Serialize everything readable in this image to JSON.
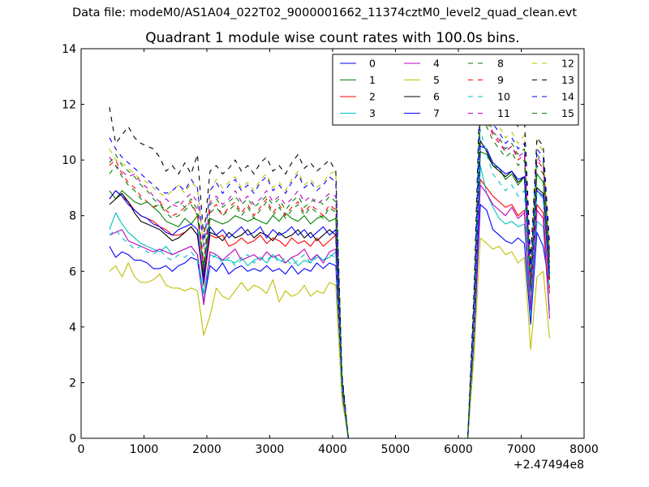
{
  "figure": {
    "suptitle": "Data file: modeM0/AS1A04_022T02_9000001662_11374cztM0_level2_quad_clean.evt"
  },
  "chart_data": {
    "type": "line",
    "title": "Quadrant 1 module wise count rates with 100.0s bins.",
    "xlabel": "",
    "ylabel": "",
    "x_offset_label": "+2.47494e8",
    "xlim": [
      0,
      8000
    ],
    "ylim": [
      0,
      14
    ],
    "xticks": [
      0,
      1000,
      2000,
      3000,
      4000,
      5000,
      6000,
      7000,
      8000
    ],
    "yticks": [
      0,
      2,
      4,
      6,
      8,
      10,
      12,
      14
    ],
    "grid": false,
    "legend_position": "top-right",
    "legend_columns": 4,
    "x": [
      450,
      550,
      650,
      750,
      850,
      950,
      1050,
      1150,
      1250,
      1350,
      1450,
      1550,
      1650,
      1750,
      1850,
      1950,
      2050,
      2150,
      2250,
      2350,
      2450,
      2550,
      2650,
      2750,
      2850,
      2950,
      3050,
      3150,
      3250,
      3350,
      3450,
      3550,
      3650,
      3750,
      3850,
      3950,
      4050,
      4150,
      4250,
      4350,
      4450,
      4550,
      4650,
      4750,
      4850,
      4950,
      5050,
      5150,
      5250,
      5350,
      5450,
      5550,
      5650,
      5750,
      5850,
      5950,
      6050,
      6150,
      6250,
      6350,
      6450,
      6550,
      6650,
      6750,
      6850,
      6950,
      7050,
      7150,
      7250,
      7350,
      7450
    ],
    "series": [
      {
        "name": "0",
        "color": "#0000ff",
        "dash": "solid",
        "values": [
          6.9,
          6.5,
          6.7,
          6.6,
          6.4,
          6.4,
          6.3,
          6.1,
          6.1,
          6.2,
          6.0,
          6.2,
          6.3,
          6.5,
          6.4,
          4.9,
          6.2,
          6.0,
          6.3,
          5.9,
          6.1,
          6.2,
          6.0,
          6.1,
          6.0,
          6.2,
          6.0,
          6.1,
          5.9,
          6.2,
          5.9,
          6.1,
          6.0,
          6.3,
          6.1,
          6.3,
          6.2,
          1.6,
          0,
          0,
          0,
          0,
          0,
          0,
          0,
          0,
          0,
          0,
          0,
          0,
          0,
          0,
          0,
          0,
          0,
          0,
          0,
          0,
          3.6,
          8.4,
          8.2,
          7.5,
          7.3,
          7.1,
          7.0,
          7.2,
          7.0,
          4.1,
          7.4,
          6.9,
          5.4
        ]
      },
      {
        "name": "1",
        "color": "#008000",
        "dash": "solid",
        "values": [
          8.9,
          8.6,
          8.9,
          8.7,
          8.5,
          8.4,
          8.5,
          8.3,
          8.1,
          7.8,
          7.7,
          7.6,
          7.9,
          7.7,
          8.0,
          6.0,
          7.9,
          7.8,
          7.7,
          7.8,
          8.0,
          7.9,
          7.8,
          7.9,
          7.8,
          7.7,
          8.0,
          7.8,
          8.1,
          7.9,
          7.8,
          8.0,
          7.7,
          7.9,
          8.0,
          7.8,
          7.9,
          1.9,
          0,
          0,
          0,
          0,
          0,
          0,
          0,
          0,
          0,
          0,
          0,
          0,
          0,
          0,
          0,
          0,
          0,
          0,
          0,
          0,
          4.4,
          10.3,
          10.2,
          9.8,
          9.7,
          9.3,
          9.5,
          9.1,
          9.4,
          5.4,
          9.5,
          9.2,
          6.1
        ]
      },
      {
        "name": "2",
        "color": "#ff0000",
        "dash": "solid",
        "values": [
          8.6,
          8.9,
          8.7,
          8.5,
          8.2,
          8.0,
          7.9,
          7.8,
          7.6,
          7.5,
          7.3,
          7.3,
          7.4,
          7.6,
          7.3,
          5.5,
          7.3,
          7.2,
          7.3,
          6.9,
          7.0,
          7.2,
          7.0,
          7.1,
          7.3,
          7.0,
          7.2,
          7.1,
          6.9,
          7.2,
          7.0,
          7.1,
          6.9,
          7.2,
          6.9,
          7.1,
          7.3,
          1.8,
          0,
          0,
          0,
          0,
          0,
          0,
          0,
          0,
          0,
          0,
          0,
          0,
          0,
          0,
          0,
          0,
          0,
          0,
          0,
          0,
          4.0,
          9.3,
          9.0,
          8.7,
          8.5,
          8.3,
          8.4,
          8.0,
          8.2,
          4.7,
          8.4,
          8.1,
          5.2
        ]
      },
      {
        "name": "3",
        "color": "#00bfbf",
        "dash": "solid",
        "values": [
          7.5,
          8.1,
          7.7,
          7.4,
          7.2,
          7.0,
          6.9,
          6.8,
          6.7,
          6.9,
          6.6,
          6.7,
          6.8,
          6.9,
          6.6,
          5.2,
          6.6,
          6.5,
          6.4,
          6.4,
          6.3,
          6.5,
          6.2,
          6.4,
          6.5,
          6.3,
          6.6,
          6.4,
          6.3,
          6.5,
          6.2,
          6.4,
          6.3,
          6.6,
          6.4,
          6.5,
          6.7,
          1.7,
          0,
          0,
          0,
          0,
          0,
          0,
          0,
          0,
          0,
          0,
          0,
          0,
          0,
          0,
          0,
          0,
          0,
          0,
          0,
          0,
          3.8,
          9.8,
          8.8,
          8.3,
          7.9,
          7.7,
          7.8,
          7.6,
          7.7,
          4.4,
          7.8,
          7.6,
          4.6
        ]
      },
      {
        "name": "4",
        "color": "#bf00bf",
        "dash": "solid",
        "values": [
          7.3,
          7.4,
          7.5,
          7.1,
          7.0,
          6.9,
          6.8,
          6.7,
          6.8,
          6.7,
          6.6,
          6.7,
          6.8,
          6.9,
          6.6,
          4.8,
          6.7,
          6.6,
          6.4,
          6.6,
          6.8,
          6.4,
          6.5,
          6.6,
          6.4,
          6.7,
          6.5,
          6.6,
          6.3,
          6.5,
          6.6,
          6.8,
          6.4,
          6.6,
          6.3,
          6.7,
          6.8,
          1.7,
          0,
          0,
          0,
          0,
          0,
          0,
          0,
          0,
          0,
          0,
          0,
          0,
          0,
          0,
          0,
          0,
          0,
          0,
          0,
          0,
          3.8,
          9.1,
          8.8,
          8.4,
          8.2,
          8.0,
          8.3,
          7.9,
          8.1,
          4.6,
          8.2,
          7.9,
          4.3
        ]
      },
      {
        "name": "5",
        "color": "#bfbf00",
        "dash": "solid",
        "values": [
          6.0,
          6.2,
          5.8,
          6.3,
          5.8,
          5.6,
          5.6,
          5.7,
          5.9,
          5.5,
          5.4,
          5.4,
          5.3,
          5.4,
          5.3,
          3.7,
          4.4,
          5.4,
          5.1,
          5.0,
          5.3,
          5.6,
          5.3,
          5.5,
          5.4,
          5.2,
          5.7,
          4.9,
          5.3,
          5.1,
          5.2,
          5.5,
          5.1,
          5.3,
          5.2,
          5.6,
          5.5,
          1.4,
          0,
          0,
          0,
          0,
          0,
          0,
          0,
          0,
          0,
          0,
          0,
          0,
          0,
          0,
          0,
          0,
          0,
          0,
          0,
          0,
          3.0,
          7.2,
          7.0,
          6.8,
          6.9,
          6.6,
          6.7,
          6.3,
          6.5,
          3.2,
          5.8,
          6.0,
          3.6
        ]
      },
      {
        "name": "6",
        "color": "#000000",
        "dash": "solid",
        "values": [
          8.4,
          8.6,
          8.8,
          8.5,
          8.1,
          7.8,
          7.7,
          7.6,
          7.5,
          7.3,
          7.1,
          7.2,
          7.4,
          7.6,
          7.3,
          5.8,
          7.4,
          7.3,
          7.1,
          7.4,
          7.2,
          7.3,
          7.5,
          7.2,
          7.4,
          7.3,
          7.1,
          7.4,
          7.2,
          7.3,
          7.5,
          7.2,
          7.4,
          7.1,
          7.3,
          7.5,
          7.3,
          1.8,
          0,
          0,
          0,
          0,
          0,
          0,
          0,
          0,
          0,
          0,
          0,
          0,
          0,
          0,
          0,
          0,
          0,
          0,
          0,
          0,
          4.2,
          10.7,
          10.3,
          9.8,
          9.6,
          9.4,
          9.6,
          9.2,
          9.4,
          5.3,
          9.0,
          8.8,
          5.7
        ]
      },
      {
        "name": "7",
        "color": "#0000ff",
        "dash": "solid",
        "values": [
          8.6,
          8.9,
          8.7,
          8.4,
          8.2,
          8.0,
          7.9,
          7.7,
          7.6,
          7.4,
          7.3,
          7.5,
          7.6,
          7.7,
          7.5,
          5.6,
          7.6,
          7.3,
          7.5,
          7.2,
          7.4,
          7.6,
          7.3,
          7.4,
          7.6,
          7.2,
          7.5,
          7.3,
          7.4,
          7.6,
          7.3,
          7.5,
          7.2,
          7.4,
          7.6,
          7.3,
          7.5,
          1.8,
          0,
          0,
          0,
          0,
          0,
          0,
          0,
          0,
          0,
          0,
          0,
          0,
          0,
          0,
          0,
          0,
          0,
          0,
          0,
          0,
          4.1,
          10.5,
          10.4,
          9.9,
          9.7,
          9.5,
          9.6,
          9.3,
          9.4,
          5.4,
          8.9,
          8.7,
          5.9
        ]
      },
      {
        "name": "8",
        "color": "#008000",
        "dash": "dashed",
        "values": [
          9.9,
          10.2,
          9.8,
          9.6,
          9.4,
          9.1,
          8.9,
          8.6,
          8.4,
          8.2,
          8.4,
          8.5,
          8.3,
          8.6,
          8.2,
          6.3,
          8.4,
          8.6,
          8.3,
          8.5,
          8.7,
          8.4,
          8.6,
          8.3,
          8.5,
          8.7,
          8.4,
          8.6,
          8.2,
          8.5,
          8.7,
          8.3,
          8.5,
          8.6,
          8.4,
          8.7,
          8.5,
          2.0,
          0,
          0,
          0,
          0,
          0,
          0,
          0,
          0,
          0,
          0,
          0,
          0,
          0,
          0,
          0,
          0,
          0,
          0,
          0,
          0,
          4.6,
          12.1,
          11.6,
          11.0,
          10.8,
          10.4,
          10.6,
          10.2,
          10.4,
          5.8,
          10.2,
          9.9,
          6.6
        ]
      },
      {
        "name": "9",
        "color": "#ff0000",
        "dash": "dashed",
        "values": [
          9.8,
          10.0,
          9.5,
          9.2,
          9.0,
          8.7,
          8.5,
          8.3,
          8.5,
          8.2,
          8.0,
          8.1,
          8.3,
          8.5,
          8.0,
          6.1,
          8.2,
          8.4,
          8.0,
          8.3,
          8.5,
          8.1,
          8.4,
          8.0,
          8.3,
          8.6,
          8.1,
          8.4,
          8.0,
          8.3,
          8.5,
          8.1,
          8.4,
          8.2,
          8.0,
          8.4,
          8.2,
          1.9,
          0,
          0,
          0,
          0,
          0,
          0,
          0,
          0,
          0,
          0,
          0,
          0,
          0,
          0,
          0,
          0,
          0,
          0,
          0,
          0,
          4.5,
          11.9,
          11.4,
          10.9,
          10.6,
          10.3,
          10.5,
          10.0,
          10.2,
          5.6,
          10.0,
          9.7,
          6.3
        ]
      },
      {
        "name": "10",
        "color": "#00bfbf",
        "dash": "dashed",
        "values": [
          7.3,
          7.5,
          7.2,
          7.0,
          6.8,
          6.9,
          6.7,
          6.6,
          6.8,
          6.5,
          6.4,
          6.6,
          6.5,
          6.7,
          6.4,
          5.1,
          6.4,
          6.6,
          6.3,
          6.5,
          6.2,
          6.4,
          6.6,
          6.3,
          6.5,
          6.4,
          6.6,
          6.3,
          6.5,
          6.2,
          6.4,
          6.6,
          6.3,
          6.5,
          6.4,
          6.6,
          6.5,
          1.7,
          0,
          0,
          0,
          0,
          0,
          0,
          0,
          0,
          0,
          0,
          0,
          0,
          0,
          0,
          0,
          0,
          0,
          0,
          0,
          0,
          4.0,
          11.1,
          10.2,
          9.5,
          9.2,
          8.9,
          9.1,
          8.7,
          8.9,
          5.0,
          8.9,
          8.6,
          5.3
        ]
      },
      {
        "name": "11",
        "color": "#bf00bf",
        "dash": "dashed",
        "values": [
          10.1,
          9.8,
          9.6,
          9.4,
          9.5,
          9.2,
          9.0,
          8.7,
          8.5,
          8.6,
          8.4,
          8.3,
          8.6,
          8.8,
          8.5,
          6.3,
          8.5,
          8.7,
          8.4,
          8.6,
          8.9,
          8.5,
          8.7,
          8.4,
          8.6,
          8.9,
          8.5,
          8.7,
          8.4,
          8.6,
          8.9,
          8.5,
          8.7,
          8.4,
          8.6,
          8.8,
          8.7,
          2.0,
          0,
          0,
          0,
          0,
          0,
          0,
          0,
          0,
          0,
          0,
          0,
          0,
          0,
          0,
          0,
          0,
          0,
          0,
          0,
          0,
          4.6,
          11.9,
          11.5,
          11.0,
          10.7,
          10.3,
          10.5,
          10.1,
          10.3,
          5.8,
          10.1,
          9.8,
          6.5
        ]
      },
      {
        "name": "12",
        "color": "#bfbf00",
        "dash": "dashed",
        "values": [
          10.4,
          10.0,
          9.9,
          9.7,
          9.5,
          9.3,
          9.2,
          9.0,
          8.8,
          8.7,
          8.9,
          9.1,
          8.8,
          9.2,
          9.0,
          6.8,
          8.9,
          9.3,
          9.0,
          9.2,
          9.4,
          9.0,
          9.2,
          8.9,
          9.3,
          9.5,
          9.0,
          9.2,
          8.9,
          9.3,
          9.6,
          9.1,
          9.3,
          9.0,
          9.2,
          9.5,
          9.6,
          2.2,
          0,
          0,
          0,
          0,
          0,
          0,
          0,
          0,
          0,
          0,
          0,
          0,
          0,
          0,
          0,
          0,
          0,
          0,
          0,
          0,
          5.0,
          12.6,
          12.0,
          11.5,
          11.2,
          10.8,
          11.0,
          10.6,
          10.9,
          6.1,
          10.7,
          10.3,
          6.8
        ]
      },
      {
        "name": "13",
        "color": "#000000",
        "dash": "dashed",
        "values": [
          11.9,
          10.6,
          10.9,
          11.2,
          10.8,
          10.6,
          10.5,
          10.4,
          10.1,
          9.6,
          9.8,
          9.5,
          9.9,
          9.5,
          10.2,
          7.2,
          9.6,
          9.8,
          9.5,
          9.7,
          10.0,
          9.6,
          9.8,
          9.5,
          9.9,
          10.1,
          9.6,
          9.8,
          9.5,
          9.9,
          10.2,
          9.7,
          9.9,
          9.6,
          9.8,
          10.0,
          9.6,
          2.3,
          0,
          0,
          0,
          0,
          0,
          0,
          0,
          0,
          0,
          0,
          0,
          0,
          0,
          0,
          0,
          0,
          0,
          0,
          0,
          0,
          5.4,
          13.2,
          12.6,
          12.1,
          11.8,
          11.4,
          11.6,
          11.2,
          11.5,
          6.4,
          10.8,
          10.5,
          7.0
        ]
      },
      {
        "name": "14",
        "color": "#0000ff",
        "dash": "dashed",
        "values": [
          10.8,
          10.4,
          10.1,
          9.9,
          9.7,
          9.5,
          9.3,
          9.1,
          8.9,
          8.8,
          8.9,
          9.1,
          8.9,
          9.3,
          9.0,
          6.9,
          8.9,
          9.2,
          8.8,
          9.1,
          9.3,
          8.9,
          9.1,
          8.8,
          9.2,
          9.4,
          8.9,
          9.1,
          8.8,
          9.2,
          9.5,
          9.0,
          9.2,
          8.9,
          9.1,
          9.4,
          9.2,
          2.2,
          0,
          0,
          0,
          0,
          0,
          0,
          0,
          0,
          0,
          0,
          0,
          0,
          0,
          0,
          0,
          0,
          0,
          0,
          0,
          0,
          5.1,
          12.3,
          11.8,
          11.3,
          11.0,
          10.6,
          10.8,
          10.4,
          10.6,
          6.0,
          10.4,
          10.1,
          6.7
        ]
      },
      {
        "name": "15",
        "color": "#008000",
        "dash": "dashed",
        "values": [
          9.5,
          9.8,
          9.4,
          9.1,
          8.9,
          8.6,
          8.5,
          8.3,
          8.4,
          8.1,
          7.9,
          8.0,
          8.2,
          8.4,
          8.0,
          6.2,
          8.1,
          8.3,
          8.0,
          8.2,
          8.4,
          8.0,
          8.3,
          7.9,
          8.2,
          8.5,
          8.0,
          8.3,
          7.9,
          8.2,
          8.4,
          8.0,
          8.3,
          8.1,
          7.9,
          8.3,
          8.1,
          1.9,
          0,
          0,
          0,
          0,
          0,
          0,
          0,
          0,
          0,
          0,
          0,
          0,
          0,
          0,
          0,
          0,
          0,
          0,
          0,
          0,
          4.5,
          11.7,
          11.2,
          10.7,
          10.4,
          10.1,
          10.3,
          9.8,
          10.0,
          5.5,
          9.8,
          9.5,
          6.2
        ]
      }
    ]
  }
}
